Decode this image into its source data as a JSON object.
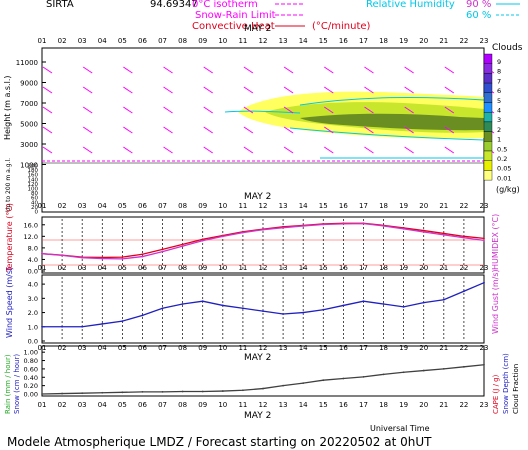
{
  "header": {
    "station": "SIRTA",
    "code": "94.69347",
    "legend_iso": "0°C isotherm",
    "legend_snow": "Snow-Rain Limit",
    "legend_conv": "Convective Heat",
    "legend_conv_unit": "(°C/minute)",
    "legend_rh": "Relative Humidity",
    "rh_90": "90 %",
    "rh_60": "60 %"
  },
  "hours": [
    "01",
    "02",
    "03",
    "04",
    "05",
    "06",
    "07",
    "08",
    "09",
    "10",
    "11",
    "12",
    "13",
    "14",
    "15",
    "16",
    "17",
    "18",
    "19",
    "20",
    "21",
    "22",
    "23"
  ],
  "date_label": "MAY  2",
  "panel1": {
    "ylabel": "Height  (m a.s.l.)",
    "ylabel2": "Up to 200 m a.g.l.",
    "yticks_upper": [
      "11000",
      "9000",
      "7000",
      "5000",
      "3000",
      "1000"
    ],
    "yticks_lower": [
      "200",
      "180",
      "160",
      "140",
      "120",
      "100",
      "80",
      "60",
      "40",
      "20",
      "0"
    ],
    "clouds_title": "Clouds",
    "clouds_unit": "(g/kg)",
    "scale_labels": [
      "9",
      "8",
      "7",
      "6",
      "5",
      "4",
      "3",
      "2",
      "1",
      "0.5",
      "0.2",
      "0.05",
      "0.01"
    ],
    "scale_colors": [
      "#b000ff",
      "#8a2be2",
      "#5a30c8",
      "#3050d0",
      "#2f6fd0",
      "#1e90ff",
      "#20b2aa",
      "#2e8b57",
      "#6b8e23",
      "#9acd32",
      "#c8e62c",
      "#e8f000",
      "#ffff80"
    ]
  },
  "panel2": {
    "ylabel_left": "Temperature (°C)",
    "ylabel_right": "HUMIDEX (°C)",
    "yticks": [
      "16.0",
      "12.0",
      "8.0",
      "4.0",
      "0.0"
    ]
  },
  "panel3": {
    "ylabel_left": "Wind Speed (m/s)",
    "ylabel_right": "Wind Gust (m/s)",
    "yticks": [
      "4.0",
      "3.0",
      "2.0",
      "1.0",
      "0.0"
    ]
  },
  "panel4": {
    "ylabel_left1": "Rain (mm / hour)",
    "ylabel_left2": "Snow (cm / hour)",
    "ylabel_right1": "CAPE (J / g)",
    "ylabel_right2": "Snow Depth (cm)",
    "ylabel_right3": "Cloud Fraction",
    "yticks": [
      "1.00",
      "0.80",
      "0.60",
      "0.40",
      "0.20",
      "0.00"
    ]
  },
  "footer": {
    "universal_time": "Universal Time",
    "title": "Modele Atmospherique LMDZ / Forecast starting on 20220502 at 0hUT"
  },
  "chart_data": [
    {
      "type": "line",
      "name": "temperature",
      "x": [
        "01",
        "02",
        "03",
        "04",
        "05",
        "06",
        "07",
        "08",
        "09",
        "10",
        "11",
        "12",
        "13",
        "14",
        "15",
        "16",
        "17",
        "18",
        "19",
        "20",
        "21",
        "22",
        "23"
      ],
      "ylim": [
        0,
        18
      ],
      "series": [
        {
          "name": "Temperature",
          "color": "#e0001c",
          "values": [
            6.0,
            5.5,
            4.8,
            4.7,
            4.8,
            5.8,
            7.5,
            9.2,
            11.0,
            12.3,
            13.6,
            14.5,
            15.3,
            15.8,
            16.3,
            16.5,
            16.5,
            15.8,
            14.9,
            14.0,
            13.0,
            12.0,
            11.3
          ]
        },
        {
          "name": "HUMIDEX",
          "color": "#cc33cc",
          "values": [
            6.0,
            5.4,
            4.6,
            4.3,
            4.2,
            5.0,
            6.7,
            8.6,
            10.5,
            12.0,
            13.3,
            14.3,
            15.0,
            15.6,
            16.1,
            16.3,
            16.4,
            15.6,
            14.6,
            13.5,
            12.5,
            11.5,
            10.6
          ]
        }
      ]
    },
    {
      "type": "line",
      "name": "wind",
      "x": [
        "01",
        "02",
        "03",
        "04",
        "05",
        "06",
        "07",
        "08",
        "09",
        "10",
        "11",
        "12",
        "13",
        "14",
        "15",
        "16",
        "17",
        "18",
        "19",
        "20",
        "21",
        "22",
        "23"
      ],
      "ylim": [
        0,
        4.5
      ],
      "series": [
        {
          "name": "Wind Speed",
          "color": "#2020c0",
          "values": [
            1.0,
            1.0,
            1.0,
            1.2,
            1.4,
            1.8,
            2.3,
            2.6,
            2.8,
            2.5,
            2.3,
            2.1,
            1.9,
            2.0,
            2.2,
            2.5,
            2.8,
            2.6,
            2.4,
            2.7,
            2.9,
            3.5,
            4.1
          ]
        }
      ]
    },
    {
      "type": "line",
      "name": "precip",
      "x": [
        "01",
        "02",
        "03",
        "04",
        "05",
        "06",
        "07",
        "08",
        "09",
        "10",
        "11",
        "12",
        "13",
        "14",
        "15",
        "16",
        "17",
        "18",
        "19",
        "20",
        "21",
        "22",
        "23"
      ],
      "ylim": [
        0,
        1.1
      ],
      "series": [
        {
          "name": "Cloud Fraction",
          "color": "#404040",
          "values": [
            0.0,
            0.01,
            0.02,
            0.03,
            0.04,
            0.05,
            0.05,
            0.06,
            0.06,
            0.07,
            0.09,
            0.13,
            0.2,
            0.26,
            0.33,
            0.37,
            0.41,
            0.47,
            0.52,
            0.56,
            0.6,
            0.65,
            0.7
          ]
        }
      ]
    }
  ]
}
